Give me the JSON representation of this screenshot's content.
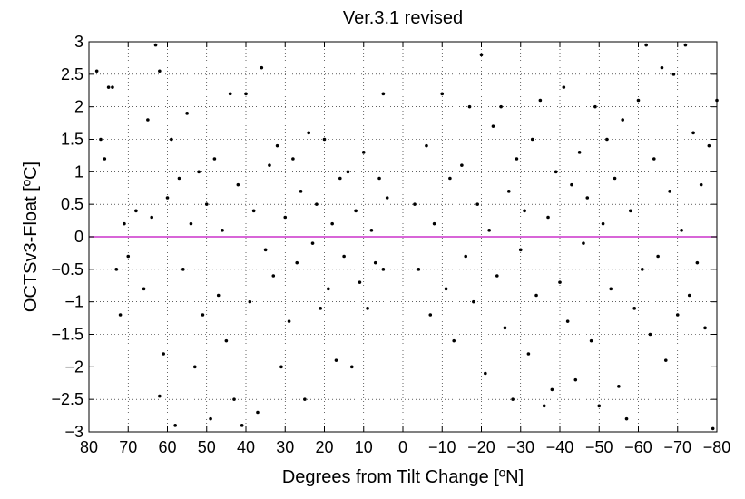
{
  "chart_data": {
    "type": "scatter",
    "title": "Ver.3.1 revised",
    "xlabel": "Degrees from Tilt Change [ºN]",
    "ylabel": "OCTSv3-Float [ºC]",
    "xlim": [
      80,
      -80
    ],
    "ylim": [
      -3,
      3
    ],
    "x_reversed": true,
    "grid": true,
    "legend": "none",
    "x_ticks": [
      80,
      70,
      60,
      50,
      40,
      30,
      20,
      10,
      0,
      -10,
      -20,
      -30,
      -40,
      -50,
      -60,
      -70,
      -80
    ],
    "x_tick_labels": [
      "80",
      "70",
      "60",
      "50",
      "40",
      "30",
      "20",
      "10",
      "0",
      "−10",
      "−20",
      "−30",
      "−40",
      "−50",
      "−60",
      "−70",
      "−80"
    ],
    "y_ticks": [
      3,
      2.5,
      2,
      1.5,
      1,
      0.5,
      0,
      -0.5,
      -1,
      -1.5,
      -2,
      -2.5,
      -3
    ],
    "y_tick_labels": [
      "3",
      "2.5",
      "2",
      "1.5",
      "1",
      "0.5",
      "0",
      "−0.5",
      "−1",
      "−1.5",
      "−2",
      "−2.5",
      "−3"
    ],
    "reference_line": {
      "y": 0,
      "color": "#cc33cc"
    },
    "marker_color": "#000000",
    "series": [
      {
        "points": [
          [
            78,
            2.55
          ],
          [
            77,
            1.5
          ],
          [
            76,
            1.2
          ],
          [
            75,
            2.3
          ],
          [
            74,
            2.3
          ],
          [
            73,
            -0.5
          ],
          [
            72,
            -1.2
          ],
          [
            71,
            0.2
          ],
          [
            70,
            -0.3
          ],
          [
            68,
            0.4
          ],
          [
            66,
            -0.8
          ],
          [
            65,
            1.8
          ],
          [
            64,
            0.3
          ],
          [
            63,
            2.95
          ],
          [
            62,
            2.55
          ],
          [
            62,
            -2.45
          ],
          [
            61,
            -1.8
          ],
          [
            60,
            0.6
          ],
          [
            59,
            1.5
          ],
          [
            58,
            -2.9
          ],
          [
            57,
            0.9
          ],
          [
            56,
            -0.5
          ],
          [
            55,
            1.9
          ],
          [
            54,
            0.2
          ],
          [
            53,
            -2.0
          ],
          [
            52,
            1.0
          ],
          [
            51,
            -1.2
          ],
          [
            50,
            0.5
          ],
          [
            49,
            -2.8
          ],
          [
            48,
            1.2
          ],
          [
            47,
            -0.9
          ],
          [
            46,
            0.1
          ],
          [
            45,
            -1.6
          ],
          [
            44,
            2.2
          ],
          [
            43,
            -2.5
          ],
          [
            42,
            0.8
          ],
          [
            41,
            -2.9
          ],
          [
            40,
            2.2
          ],
          [
            39,
            -1.0
          ],
          [
            38,
            0.4
          ],
          [
            37,
            -2.7
          ],
          [
            36,
            2.6
          ],
          [
            35,
            -0.2
          ],
          [
            34,
            1.1
          ],
          [
            33,
            -0.6
          ],
          [
            32,
            1.4
          ],
          [
            31,
            -2.0
          ],
          [
            30,
            0.3
          ],
          [
            29,
            -1.3
          ],
          [
            28,
            1.2
          ],
          [
            27,
            -0.4
          ],
          [
            26,
            0.7
          ],
          [
            25,
            -2.5
          ],
          [
            24,
            1.6
          ],
          [
            23,
            -0.1
          ],
          [
            22,
            0.5
          ],
          [
            21,
            -1.1
          ],
          [
            20,
            1.5
          ],
          [
            19,
            -0.8
          ],
          [
            18,
            0.2
          ],
          [
            17,
            -1.9
          ],
          [
            16,
            0.9
          ],
          [
            15,
            -0.3
          ],
          [
            14,
            1.0
          ],
          [
            13,
            -2.0
          ],
          [
            12,
            0.4
          ],
          [
            11,
            -0.7
          ],
          [
            10,
            1.3
          ],
          [
            9,
            -1.1
          ],
          [
            8,
            0.1
          ],
          [
            7,
            -0.4
          ],
          [
            6,
            0.9
          ],
          [
            5,
            2.2
          ],
          [
            5,
            -0.5
          ],
          [
            4,
            0.6
          ],
          [
            -3,
            0.5
          ],
          [
            -4,
            -0.5
          ],
          [
            -6,
            1.4
          ],
          [
            -7,
            -1.2
          ],
          [
            -8,
            0.2
          ],
          [
            -10,
            2.2
          ],
          [
            -11,
            -0.8
          ],
          [
            -12,
            0.9
          ],
          [
            -13,
            -1.6
          ],
          [
            -15,
            1.1
          ],
          [
            -16,
            -0.3
          ],
          [
            -17,
            2.0
          ],
          [
            -18,
            -1.0
          ],
          [
            -19,
            0.5
          ],
          [
            -20,
            2.8
          ],
          [
            -21,
            -2.1
          ],
          [
            -22,
            0.1
          ],
          [
            -23,
            1.7
          ],
          [
            -24,
            -0.6
          ],
          [
            -25,
            2.0
          ],
          [
            -26,
            -1.4
          ],
          [
            -27,
            0.7
          ],
          [
            -28,
            -2.5
          ],
          [
            -29,
            1.2
          ],
          [
            -30,
            -0.2
          ],
          [
            -31,
            0.4
          ],
          [
            -32,
            -1.8
          ],
          [
            -33,
            1.5
          ],
          [
            -34,
            -0.9
          ],
          [
            -35,
            2.1
          ],
          [
            -36,
            -2.6
          ],
          [
            -37,
            0.3
          ],
          [
            -38,
            -2.35
          ],
          [
            -39,
            1.0
          ],
          [
            -40,
            -0.7
          ],
          [
            -41,
            2.3
          ],
          [
            -42,
            -1.3
          ],
          [
            -43,
            0.8
          ],
          [
            -44,
            -2.2
          ],
          [
            -45,
            1.3
          ],
          [
            -46,
            -0.1
          ],
          [
            -47,
            0.6
          ],
          [
            -48,
            -1.6
          ],
          [
            -49,
            2.0
          ],
          [
            -50,
            -2.6
          ],
          [
            -51,
            0.2
          ],
          [
            -52,
            1.5
          ],
          [
            -53,
            -0.8
          ],
          [
            -54,
            0.9
          ],
          [
            -55,
            -2.3
          ],
          [
            -56,
            1.8
          ],
          [
            -57,
            -2.8
          ],
          [
            -58,
            0.4
          ],
          [
            -59,
            -1.1
          ],
          [
            -60,
            2.1
          ],
          [
            -61,
            -0.5
          ],
          [
            -62,
            2.95
          ],
          [
            -63,
            -1.5
          ],
          [
            -64,
            1.2
          ],
          [
            -65,
            -0.3
          ],
          [
            -66,
            2.6
          ],
          [
            -67,
            -1.9
          ],
          [
            -68,
            0.7
          ],
          [
            -69,
            2.5
          ],
          [
            -70,
            -1.2
          ],
          [
            -71,
            0.1
          ],
          [
            -72,
            2.95
          ],
          [
            -73,
            -0.9
          ],
          [
            -74,
            1.6
          ],
          [
            -75,
            -0.4
          ],
          [
            -76,
            0.8
          ],
          [
            -77,
            -1.4
          ],
          [
            -78,
            1.4
          ],
          [
            -79,
            -2.95
          ],
          [
            -80,
            2.1
          ]
        ]
      }
    ]
  }
}
